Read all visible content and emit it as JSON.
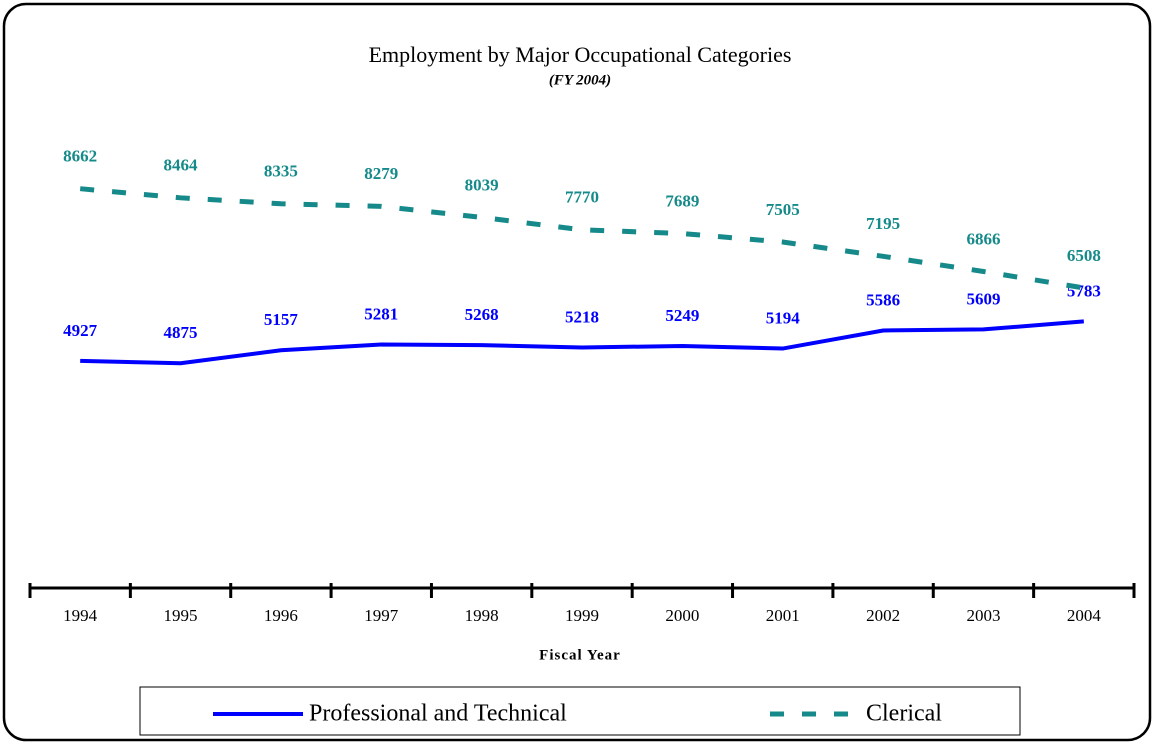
{
  "chart_data": {
    "type": "line",
    "title": "Employment by Major Occupational Categories",
    "subtitle": "(FY 2004)",
    "x_label": "Fiscal Year",
    "categories": [
      "1994",
      "1995",
      "1996",
      "1997",
      "1998",
      "1999",
      "2000",
      "2001",
      "2002",
      "2003",
      "2004"
    ],
    "series": [
      {
        "name": "Professional and Technical",
        "color": "#0000ff",
        "dashed": false,
        "values": [
          4927,
          4875,
          5157,
          5281,
          5268,
          5218,
          5249,
          5194,
          5586,
          5609,
          5783
        ]
      },
      {
        "name": "Clerical",
        "color": "#168a8a",
        "dashed": true,
        "values": [
          8662,
          8464,
          8335,
          8279,
          8039,
          7770,
          7689,
          7505,
          7195,
          6866,
          6508
        ]
      }
    ],
    "ylim": [
      0,
      10000
    ],
    "legend": "bottom"
  }
}
